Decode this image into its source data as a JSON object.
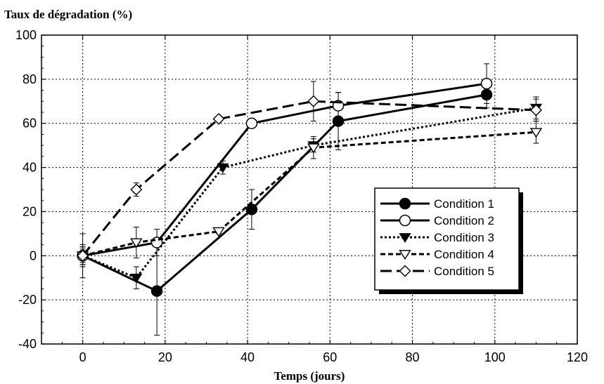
{
  "chart_data": {
    "type": "line",
    "ylabel": "Taux de dégradation (%)",
    "xlabel": "Temps (jours)",
    "xlim": [
      -10,
      120
    ],
    "ylim": [
      -40,
      100
    ],
    "xticks": [
      0,
      20,
      40,
      60,
      80,
      100,
      120
    ],
    "yticks": [
      -40,
      -20,
      0,
      20,
      40,
      60,
      80,
      100
    ],
    "grid": true,
    "legend_position": "lower-right",
    "series": [
      {
        "name": "Condition 1",
        "line": "solid",
        "marker": "circle-filled",
        "points": [
          [
            0,
            0
          ],
          [
            18,
            -16
          ],
          [
            41,
            21
          ],
          [
            62,
            61
          ],
          [
            98,
            73
          ]
        ],
        "errors": [
          10,
          20,
          9,
          13,
          6
        ]
      },
      {
        "name": "Condition 2",
        "line": "solid",
        "marker": "circle-open",
        "points": [
          [
            0,
            0
          ],
          [
            18,
            6
          ],
          [
            41,
            60
          ],
          [
            62,
            68
          ],
          [
            98,
            78
          ]
        ],
        "errors": [
          5,
          6,
          1.5,
          6,
          9
        ]
      },
      {
        "name": "Condition 3",
        "line": "dotted",
        "marker": "triangle-down-filled",
        "points": [
          [
            0,
            0
          ],
          [
            13,
            -10
          ],
          [
            34,
            40
          ],
          [
            56,
            50
          ],
          [
            110,
            67
          ]
        ],
        "errors": [
          4,
          5,
          3,
          3,
          5
        ]
      },
      {
        "name": "Condition 4",
        "line": "dashed",
        "marker": "triangle-down-open",
        "points": [
          [
            0,
            0
          ],
          [
            13,
            6
          ],
          [
            33,
            11
          ],
          [
            56,
            49
          ],
          [
            110,
            56
          ]
        ],
        "errors": [
          4,
          7,
          1,
          5,
          5
        ]
      },
      {
        "name": "Condition 5",
        "line": "longdash",
        "marker": "diamond-open",
        "points": [
          [
            0,
            0
          ],
          [
            13,
            30
          ],
          [
            33,
            62
          ],
          [
            56,
            70
          ],
          [
            110,
            66
          ]
        ],
        "errors": [
          3,
          3,
          1,
          9,
          5
        ]
      }
    ]
  }
}
